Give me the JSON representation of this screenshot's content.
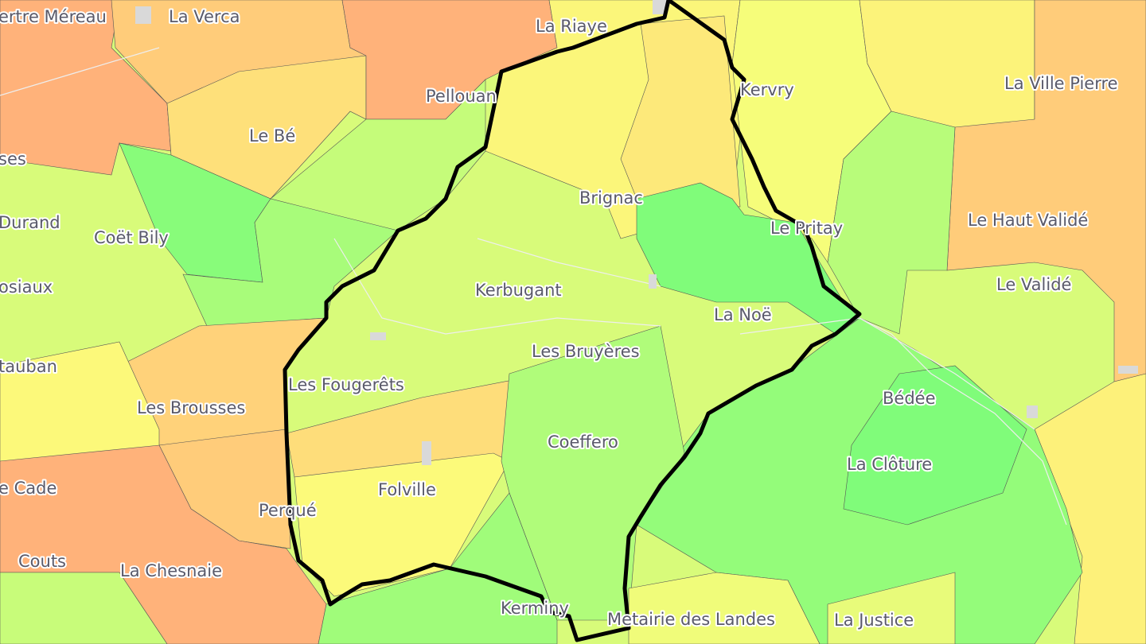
{
  "map": {
    "colors": {
      "boundary": "#000000",
      "orange": "#ffb27a",
      "light_orange": "#ffcc7a",
      "pale_orange": "#fedd7a",
      "yellow": "#fcf57a",
      "yellow_green": "#d8fb7a",
      "light_green": "#b8fc7a",
      "green": "#94fc7a",
      "bright_green": "#80fc7a",
      "built_up": "#d9d9d9",
      "label_text": "#5a5a6a"
    },
    "labels": [
      "ertre Méreau",
      "La Verca",
      "La Riaye",
      "Pellouan",
      "Le Bé",
      "ses",
      "Kervry",
      "La Ville Pierre",
      "Brignac",
      "Durand",
      "Coët Bily",
      "Le Pritay",
      "Le Haut Validé",
      "osiaux",
      "Kerbugant",
      "Le Validé",
      "La Noë",
      "tauban",
      "Les Bruyères",
      "Les Fougerêts",
      "Les Brousses",
      "Bédée",
      "Coeffero",
      "La Clôture",
      "e Cade",
      "Folville",
      "Perqué",
      "Couts",
      "La Chesnaie",
      "Kerminy",
      "Metairie des Landes",
      "La Justice"
    ]
  }
}
